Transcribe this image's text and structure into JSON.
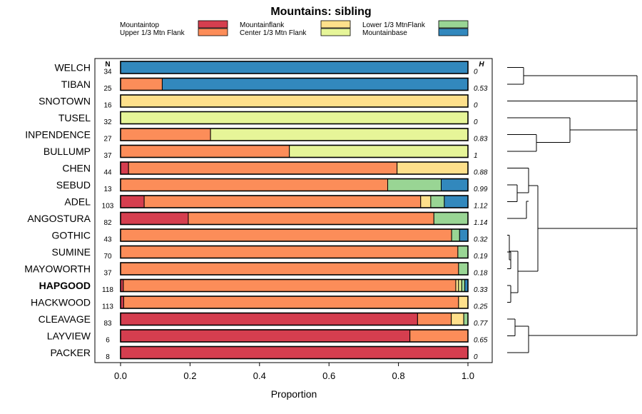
{
  "chart_data": {
    "type": "bar",
    "stacked": true,
    "orientation": "horizontal",
    "title": "Mountains: sibling",
    "xlabel": "Proportion",
    "xlim": [
      0,
      1
    ],
    "xticks": [
      "0.0",
      "0.2",
      "0.4",
      "0.6",
      "0.8",
      "1.0"
    ],
    "xtick_values": [
      0,
      0.2,
      0.4,
      0.6,
      0.8,
      1.0
    ],
    "n_header": "N",
    "h_header": "H",
    "legend": [
      {
        "name": "Mountaintop",
        "color": "#d53e4f"
      },
      {
        "name": "Upper 1/3 Mtn Flank",
        "color": "#fc8d59"
      },
      {
        "name": "Mountainflank",
        "color": "#fee08b"
      },
      {
        "name": "Center 1/3 Mtn Flank",
        "color": "#e6f598"
      },
      {
        "name": "Lower 1/3 MtnFlank",
        "color": "#99d594"
      },
      {
        "name": "Mountainbase",
        "color": "#3288bd"
      }
    ],
    "categories": [
      "WELCH",
      "TIBAN",
      "SNOTOWN",
      "TUSEL",
      "INPENDENCE",
      "BULLUMP",
      "CHEN",
      "SEBUD",
      "ADEL",
      "ANGOSTURA",
      "GOTHIC",
      "SUMINE",
      "MAYOWORTH",
      "HAPGOOD",
      "HACKWOOD",
      "CLEAVAGE",
      "LAYVIEW",
      "PACKER"
    ],
    "highlight": "HAPGOOD",
    "n": [
      "34",
      "25",
      "16",
      "32",
      "27",
      "37",
      "44",
      "13",
      "103",
      "82",
      "43",
      "70",
      "37",
      "118",
      "113",
      "83",
      "6",
      "8"
    ],
    "h": [
      "0",
      "0.53",
      "0",
      "0",
      "0.83",
      "1",
      "0.88",
      "0.99",
      "1.12",
      "1.14",
      "0.32",
      "0.19",
      "0.18",
      "0.33",
      "0.25",
      "0.77",
      "0.65",
      "0"
    ],
    "series": [
      {
        "name": "Mountaintop",
        "values": [
          0,
          0,
          0,
          0,
          0,
          0,
          0.023,
          0,
          0.068,
          0.195,
          0,
          0,
          0,
          0.008,
          0.009,
          0.855,
          0.833,
          1.0
        ]
      },
      {
        "name": "Upper 1/3 Mtn Flank",
        "values": [
          0,
          0.12,
          0,
          0,
          0.259,
          0.486,
          0.773,
          0.769,
          0.796,
          0.707,
          0.953,
          0.971,
          0.973,
          0.957,
          0.964,
          0.097,
          0.167,
          0
        ]
      },
      {
        "name": "Mountainflank",
        "values": [
          0,
          0,
          1.0,
          0,
          0,
          0,
          0.204,
          0,
          0.029,
          0,
          0,
          0,
          0,
          0.008,
          0.027,
          0.036,
          0,
          0
        ]
      },
      {
        "name": "Center 1/3 Mtn Flank",
        "values": [
          0,
          0,
          0,
          1.0,
          0.741,
          0.514,
          0,
          0,
          0,
          0,
          0,
          0,
          0,
          0.009,
          0,
          0,
          0,
          0
        ]
      },
      {
        "name": "Lower 1/3 MtnFlank",
        "values": [
          0,
          0,
          0,
          0,
          0,
          0,
          0,
          0.154,
          0.039,
          0.098,
          0.023,
          0.029,
          0.027,
          0.009,
          0,
          0.012,
          0,
          0
        ]
      },
      {
        "name": "Mountainbase",
        "values": [
          1.0,
          0.88,
          0,
          0,
          0,
          0,
          0,
          0.077,
          0.068,
          0,
          0.024,
          0,
          0,
          0.009,
          0,
          0,
          0,
          0
        ]
      }
    ]
  }
}
